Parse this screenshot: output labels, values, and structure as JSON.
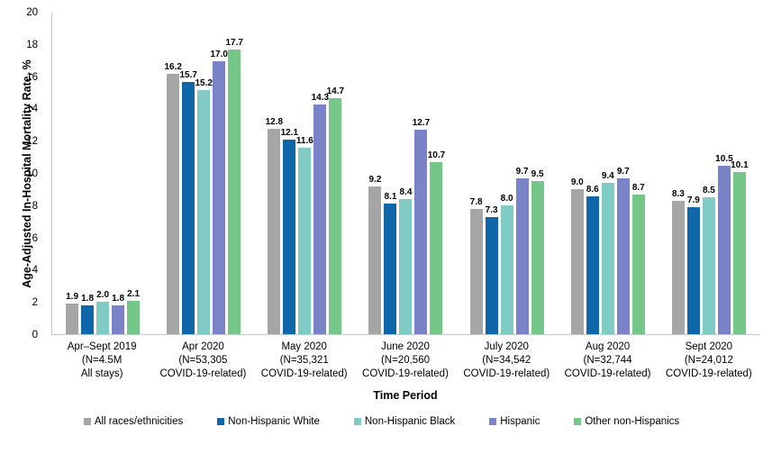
{
  "chart_data": {
    "type": "bar",
    "title": "",
    "xlabel": "Time Period",
    "ylabel": "Age-Adjusted In-Hospital Mortality Rate, %",
    "ylim": [
      0,
      20
    ],
    "ytick_step": 2,
    "grid": false,
    "legend_position": "bottom",
    "value_label_format": "one-decimal",
    "patterned_category_index": 0,
    "categories": [
      [
        "Apr–Sept 2019",
        "(N=4.5M",
        "All stays)"
      ],
      [
        "Apr 2020",
        "(N=53,305",
        "COVID-19-related)"
      ],
      [
        "May 2020",
        "(N=35,321",
        "COVID-19-related)"
      ],
      [
        "June 2020",
        "(N=20,560",
        "COVID-19-related)"
      ],
      [
        "July 2020",
        "(N=34,542",
        "COVID-19-related)"
      ],
      [
        "Aug 2020",
        "(N=32,744",
        "COVID-19-related)"
      ],
      [
        "Sept 2020",
        "(N=24,012",
        "COVID-19-related)"
      ]
    ],
    "series": [
      {
        "name": "All races/ethnicities",
        "color": "#A6A6A6",
        "values": [
          1.9,
          16.2,
          12.8,
          9.2,
          7.8,
          9.0,
          8.3
        ]
      },
      {
        "name": "Non-Hispanic White",
        "color": "#0F67A9",
        "values": [
          1.8,
          15.7,
          12.1,
          8.1,
          7.3,
          8.6,
          7.9
        ]
      },
      {
        "name": "Non-Hispanic Black",
        "color": "#80CBC3",
        "values": [
          2.0,
          15.2,
          11.6,
          8.4,
          8.0,
          9.4,
          8.5
        ]
      },
      {
        "name": "Hispanic",
        "color": "#7A82C8",
        "values": [
          1.8,
          17.0,
          14.3,
          12.7,
          9.7,
          9.7,
          10.5
        ]
      },
      {
        "name": "Other non-Hispanics",
        "color": "#74C689",
        "values": [
          2.1,
          17.7,
          14.7,
          10.7,
          9.5,
          8.7,
          10.1
        ]
      }
    ]
  }
}
